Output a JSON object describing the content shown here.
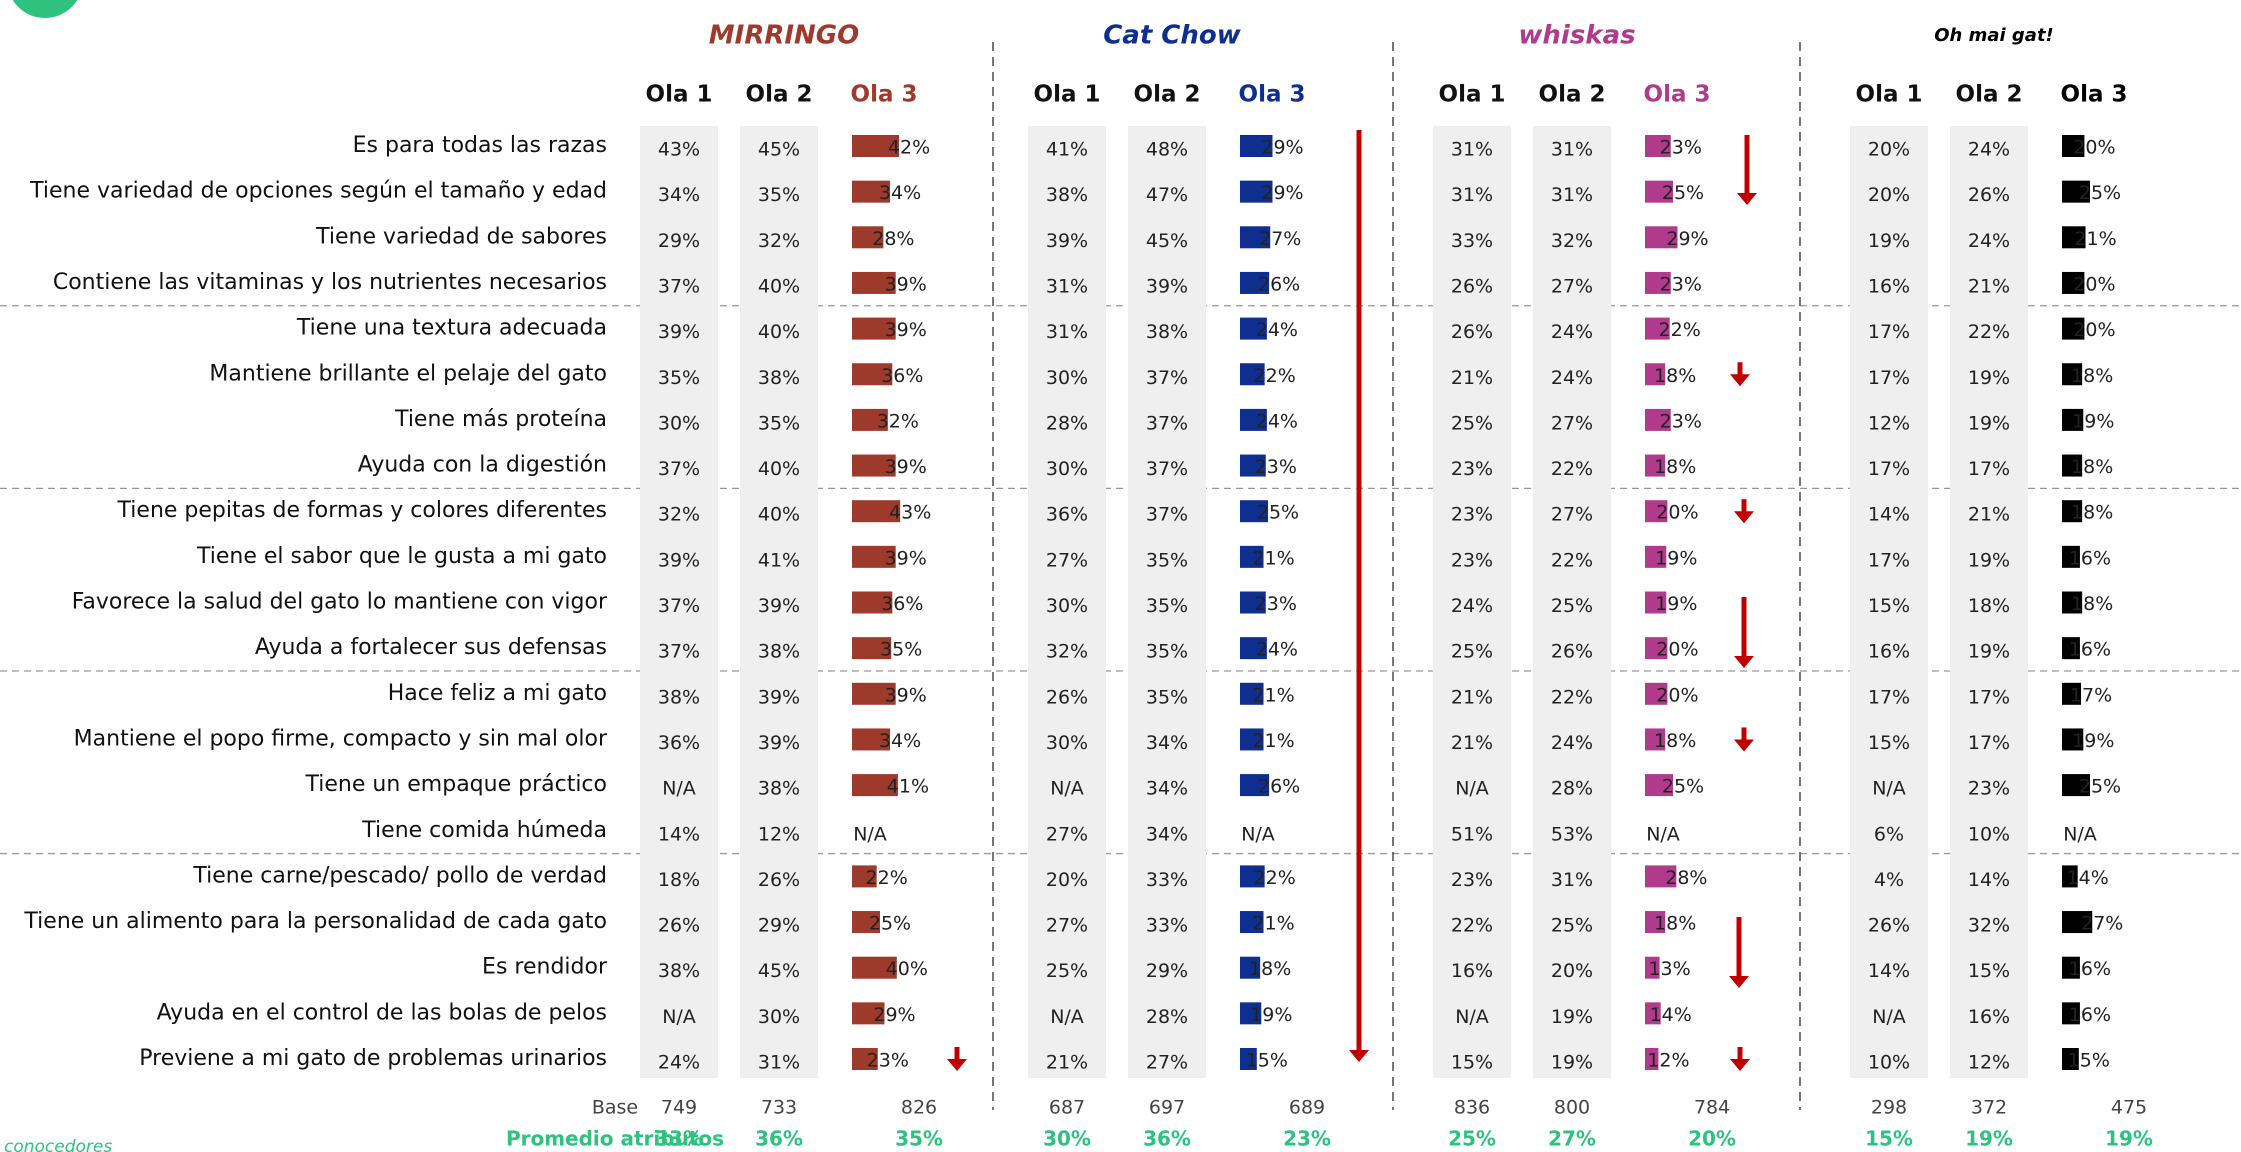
{
  "waves": [
    "Ola 1",
    "Ola 2",
    "Ola 3"
  ],
  "attributes": [
    "Es para todas las razas",
    "Tiene variedad de opciones según el tamaño y edad",
    "Tiene variedad de sabores",
    "Contiene las vitaminas y los nutrientes necesarios",
    "Tiene una  textura adecuada",
    "Mantiene  brillante el pelaje del gato",
    "Tiene más proteína",
    "Ayuda con la digestión",
    "Tiene pepitas de formas y colores diferentes",
    "Tiene  el sabor que le gusta a mi gato",
    "Favorece la salud del gato lo mantiene con vigor",
    "Ayuda a fortalecer sus defensas",
    "Hace feliz a mi gato",
    "Mantiene el popo firme, compacto y sin mal olor",
    "Tiene un empaque práctico",
    "Tiene comida húmeda",
    "Tiene carne/pescado/ pollo de verdad",
    "Tiene un alimento para la personalidad de cada gato",
    "Es rendidor",
    "Ayuda en el control de las bolas de pelos",
    "Previene a mi gato de problemas urinarios"
  ],
  "base_label": "Base",
  "average_label": "Promedio atributos",
  "note": "conocedores",
  "brands": [
    {
      "name": "MIRRINGO",
      "color": "#9e3a2b",
      "values": [
        [
          "43%",
          "45%",
          "42%"
        ],
        [
          "34%",
          "35%",
          "34%"
        ],
        [
          "29%",
          "32%",
          "28%"
        ],
        [
          "37%",
          "40%",
          "39%"
        ],
        [
          "39%",
          "40%",
          "39%"
        ],
        [
          "35%",
          "38%",
          "36%"
        ],
        [
          "30%",
          "35%",
          "32%"
        ],
        [
          "37%",
          "40%",
          "39%"
        ],
        [
          "32%",
          "40%",
          "43%"
        ],
        [
          "39%",
          "41%",
          "39%"
        ],
        [
          "37%",
          "39%",
          "36%"
        ],
        [
          "37%",
          "38%",
          "35%"
        ],
        [
          "38%",
          "39%",
          "39%"
        ],
        [
          "36%",
          "39%",
          "34%"
        ],
        [
          "N/A",
          "38%",
          "41%"
        ],
        [
          "14%",
          "12%",
          "N/A"
        ],
        [
          "18%",
          "26%",
          "22%"
        ],
        [
          "26%",
          "29%",
          "25%"
        ],
        [
          "38%",
          "45%",
          "40%"
        ],
        [
          "N/A",
          "30%",
          "29%"
        ],
        [
          "24%",
          "31%",
          "23%"
        ]
      ],
      "base": [
        "749",
        "733",
        "826"
      ],
      "average": [
        "33%",
        "36%",
        "35%"
      ]
    },
    {
      "name": "Cat Chow",
      "color": "#0e2f8f",
      "values": [
        [
          "41%",
          "48%",
          "29%"
        ],
        [
          "38%",
          "47%",
          "29%"
        ],
        [
          "39%",
          "45%",
          "27%"
        ],
        [
          "31%",
          "39%",
          "26%"
        ],
        [
          "31%",
          "38%",
          "24%"
        ],
        [
          "30%",
          "37%",
          "22%"
        ],
        [
          "28%",
          "37%",
          "24%"
        ],
        [
          "30%",
          "37%",
          "23%"
        ],
        [
          "36%",
          "37%",
          "25%"
        ],
        [
          "27%",
          "35%",
          "21%"
        ],
        [
          "30%",
          "35%",
          "23%"
        ],
        [
          "32%",
          "35%",
          "24%"
        ],
        [
          "26%",
          "35%",
          "21%"
        ],
        [
          "30%",
          "34%",
          "21%"
        ],
        [
          "N/A",
          "34%",
          "26%"
        ],
        [
          "27%",
          "34%",
          "N/A"
        ],
        [
          "20%",
          "33%",
          "22%"
        ],
        [
          "27%",
          "33%",
          "21%"
        ],
        [
          "25%",
          "29%",
          "18%"
        ],
        [
          "N/A",
          "28%",
          "19%"
        ],
        [
          "21%",
          "27%",
          "15%"
        ]
      ],
      "base": [
        "687",
        "697",
        "689"
      ],
      "average": [
        "30%",
        "36%",
        "23%"
      ]
    },
    {
      "name": "whiskas",
      "color": "#b03a8c",
      "values": [
        [
          "31%",
          "31%",
          "23%"
        ],
        [
          "31%",
          "31%",
          "25%"
        ],
        [
          "33%",
          "32%",
          "29%"
        ],
        [
          "26%",
          "27%",
          "23%"
        ],
        [
          "26%",
          "24%",
          "22%"
        ],
        [
          "21%",
          "24%",
          "18%"
        ],
        [
          "25%",
          "27%",
          "23%"
        ],
        [
          "23%",
          "22%",
          "18%"
        ],
        [
          "23%",
          "27%",
          "20%"
        ],
        [
          "23%",
          "22%",
          "19%"
        ],
        [
          "24%",
          "25%",
          "19%"
        ],
        [
          "25%",
          "26%",
          "20%"
        ],
        [
          "21%",
          "22%",
          "20%"
        ],
        [
          "21%",
          "24%",
          "18%"
        ],
        [
          "N/A",
          "28%",
          "25%"
        ],
        [
          "51%",
          "53%",
          "N/A"
        ],
        [
          "23%",
          "31%",
          "28%"
        ],
        [
          "22%",
          "25%",
          "18%"
        ],
        [
          "16%",
          "20%",
          "13%"
        ],
        [
          "N/A",
          "19%",
          "14%"
        ],
        [
          "15%",
          "19%",
          "12%"
        ]
      ],
      "base": [
        "836",
        "800",
        "784"
      ],
      "average": [
        "25%",
        "27%",
        "20%"
      ]
    },
    {
      "name": "Oh mai gat!",
      "color": "#000000",
      "values": [
        [
          "20%",
          "24%",
          "20%"
        ],
        [
          "20%",
          "26%",
          "25%"
        ],
        [
          "19%",
          "24%",
          "21%"
        ],
        [
          "16%",
          "21%",
          "20%"
        ],
        [
          "17%",
          "22%",
          "20%"
        ],
        [
          "17%",
          "19%",
          "18%"
        ],
        [
          "12%",
          "19%",
          "19%"
        ],
        [
          "17%",
          "17%",
          "18%"
        ],
        [
          "14%",
          "21%",
          "18%"
        ],
        [
          "17%",
          "19%",
          "16%"
        ],
        [
          "15%",
          "18%",
          "18%"
        ],
        [
          "16%",
          "19%",
          "16%"
        ],
        [
          "17%",
          "17%",
          "17%"
        ],
        [
          "15%",
          "17%",
          "19%"
        ],
        [
          "N/A",
          "23%",
          "25%"
        ],
        [
          "6%",
          "10%",
          "N/A"
        ],
        [
          "4%",
          "14%",
          "14%"
        ],
        [
          "26%",
          "32%",
          "27%"
        ],
        [
          "14%",
          "15%",
          "16%"
        ],
        [
          "N/A",
          "16%",
          "16%"
        ],
        [
          "10%",
          "12%",
          "15%"
        ]
      ],
      "base": [
        "298",
        "372",
        "475"
      ],
      "average": [
        "15%",
        "19%",
        "19%"
      ]
    }
  ]
}
